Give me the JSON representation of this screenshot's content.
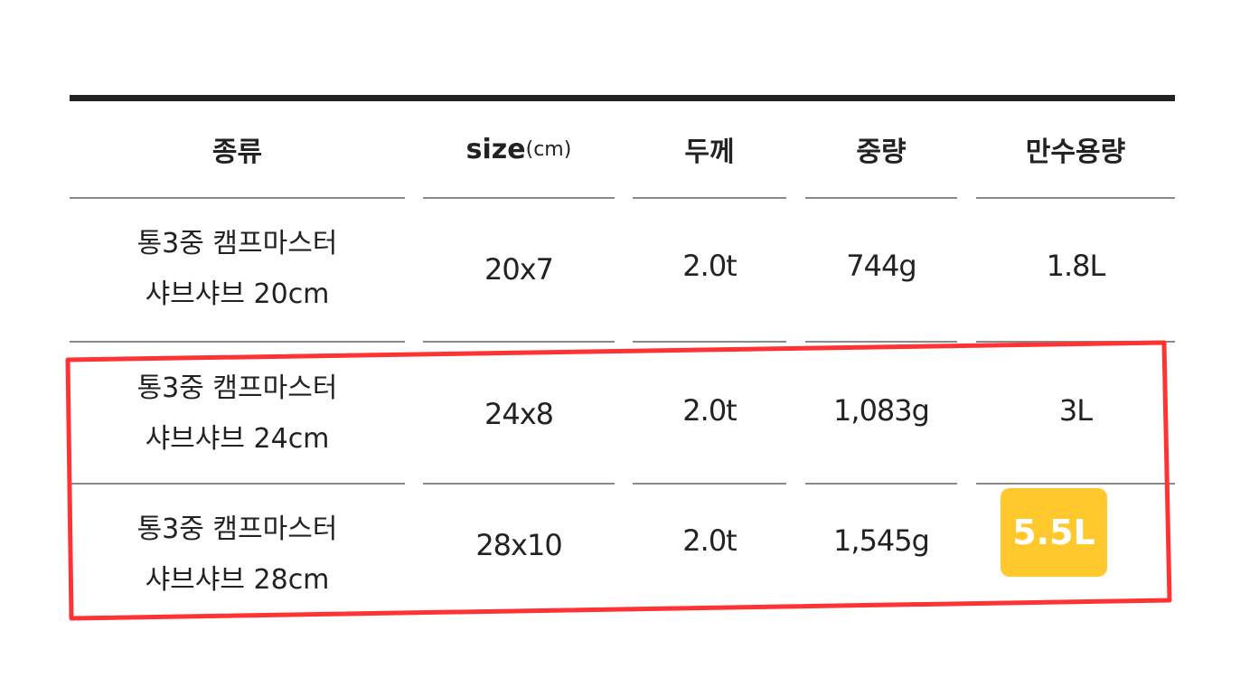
{
  "table": {
    "headers": [
      "종류",
      "size",
      "(cm)",
      "두께",
      "중량",
      "만수용량"
    ],
    "rows": [
      {
        "name_line1": "통3중 캠프마스터",
        "name_line2": "샤브샤브 20cm",
        "size": "20x7",
        "thickness": "2.0t",
        "weight": "744g",
        "capacity": "1.8L"
      },
      {
        "name_line1": "통3중 캠프마스터",
        "name_line2": "샤브샤브 24cm",
        "size": "24x8",
        "thickness": "2.0t",
        "weight": "1,083g",
        "capacity": "3L"
      },
      {
        "name_line1": "통3중 캠프마스터",
        "name_line2": "샤브샤브 28cm",
        "size": "28x10",
        "thickness": "2.0t",
        "weight": "1,545g",
        "capacity": "5.5L"
      }
    ]
  },
  "colors": {
    "highlight_box": "#ff3333",
    "badge": "#ffc92e"
  }
}
